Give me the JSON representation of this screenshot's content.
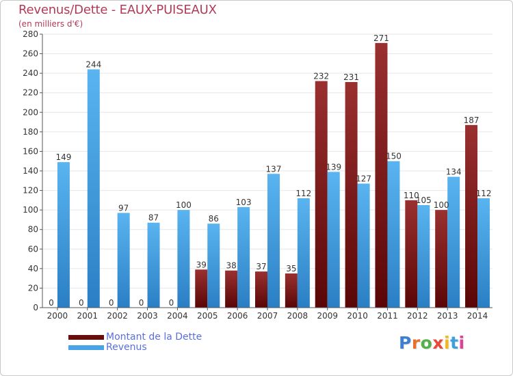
{
  "chart_data": {
    "type": "bar",
    "title": "Revenus/Dette - EAUX-PUISEAUX",
    "subtitle": "(en milliers d'€)",
    "categories": [
      "2000",
      "2001",
      "2002",
      "2003",
      "2004",
      "2005",
      "2006",
      "2007",
      "2008",
      "2009",
      "2010",
      "2011",
      "2012",
      "2013",
      "2014"
    ],
    "series": [
      {
        "name": "Montant de la Dette",
        "color": "#7a1616",
        "values": [
          0,
          0,
          0,
          0,
          0,
          39,
          38,
          37,
          35,
          232,
          231,
          271,
          110,
          100,
          187
        ]
      },
      {
        "name": "Revenus",
        "color": "#4aa3e6",
        "values": [
          149,
          244,
          97,
          87,
          100,
          86,
          103,
          137,
          112,
          139,
          127,
          150,
          105,
          134,
          112
        ]
      }
    ],
    "ylim": [
      0,
      280
    ],
    "yticks": [
      0,
      20,
      40,
      60,
      80,
      100,
      120,
      140,
      160,
      180,
      200,
      220,
      240,
      260,
      280
    ],
    "grid": true,
    "legend_position": "bottom-left"
  },
  "logo": {
    "letters": [
      {
        "char": "P",
        "color": "#3f7fd0"
      },
      {
        "char": "r",
        "color": "#e8702a"
      },
      {
        "char": "o",
        "color": "#56b04a"
      },
      {
        "char": "x",
        "color": "#e84a3a"
      },
      {
        "char": "i",
        "color": "#f0b820"
      },
      {
        "char": "t",
        "color": "#3f9fd8"
      },
      {
        "char": "i",
        "color": "#e0409a"
      }
    ]
  }
}
